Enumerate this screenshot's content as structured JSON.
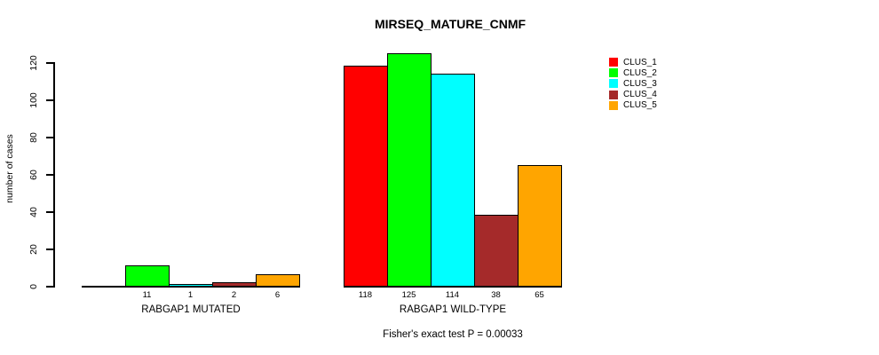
{
  "chart_data": {
    "type": "bar",
    "title": "MIRSEQ_MATURE_CNMF",
    "ylabel": "number of cases",
    "xlabel": "",
    "ylim": [
      0,
      120
    ],
    "yticks": [
      0,
      20,
      40,
      60,
      80,
      100,
      120
    ],
    "grid": false,
    "legend_position": "top-right",
    "clusters": [
      {
        "name": "CLUS_1",
        "color": "#ff0000"
      },
      {
        "name": "CLUS_2",
        "color": "#00ff00"
      },
      {
        "name": "CLUS_3",
        "color": "#00ffff"
      },
      {
        "name": "CLUS_4",
        "color": "#a52a2a"
      },
      {
        "name": "CLUS_5",
        "color": "#ffa500"
      }
    ],
    "groups": [
      {
        "label": "RABGAP1 MUTATED",
        "values": [
          0,
          11,
          1,
          2,
          6
        ],
        "bar_labels": [
          "",
          "11",
          "1",
          "2",
          "6"
        ]
      },
      {
        "label": "RABGAP1 WILD-TYPE",
        "values": [
          118,
          125,
          114,
          38,
          65
        ],
        "bar_labels": [
          "118",
          "125",
          "114",
          "38",
          "65"
        ]
      }
    ],
    "annotation": "Fisher's exact test P = 0.00033"
  }
}
